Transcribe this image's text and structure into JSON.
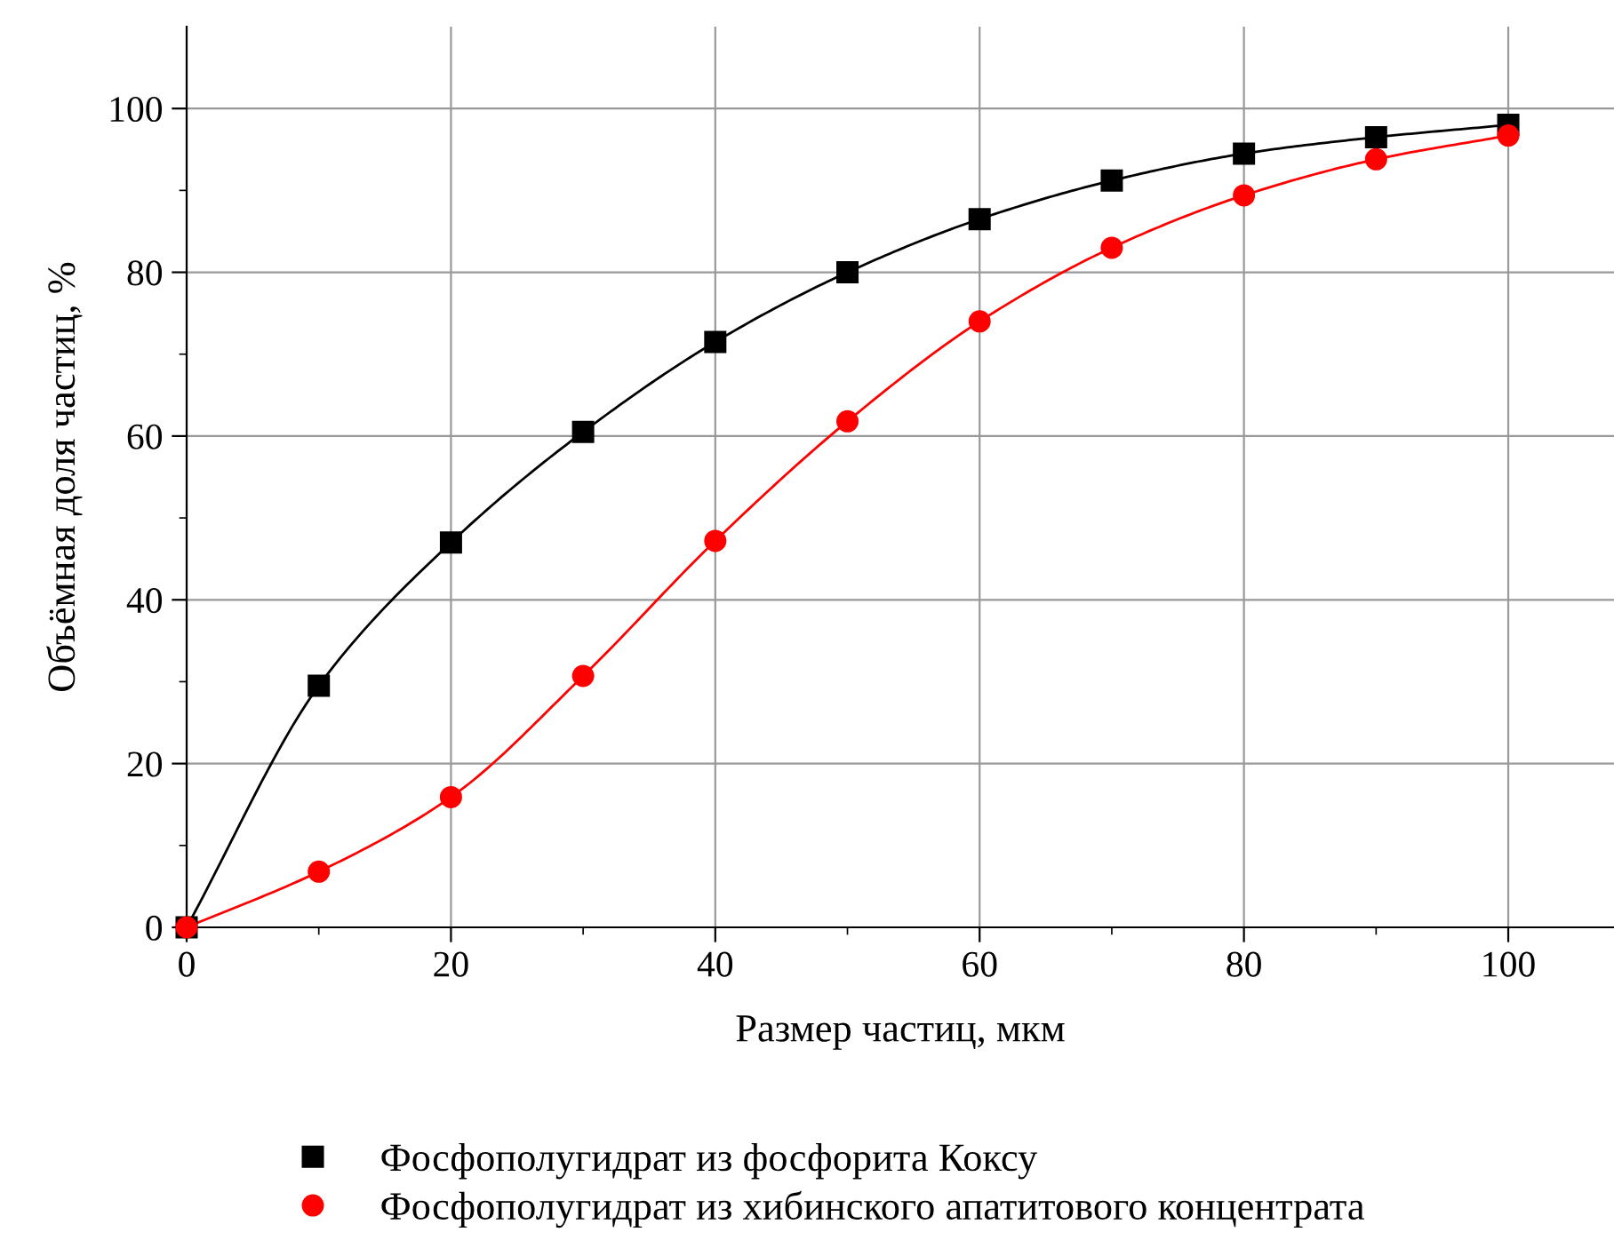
{
  "chart_data": {
    "type": "line",
    "xlabel": "Размер частиц, мкм",
    "ylabel": "Объёмная доля частиц, %",
    "x": [
      0,
      10,
      20,
      30,
      40,
      50,
      60,
      70,
      80,
      90,
      100
    ],
    "series": [
      {
        "name": "Фосфополугидрат из фосфорита Коксу",
        "color": "#000000",
        "marker": "square",
        "values": [
          0,
          29.5,
          47,
          60.5,
          71.5,
          80,
          86.5,
          91.2,
          94.5,
          96.5,
          98
        ]
      },
      {
        "name": "Фосфополугидрат из хибинского апатитового концентрата",
        "color": "#ff0000",
        "marker": "circle",
        "values": [
          0,
          6.8,
          15.9,
          30.7,
          47.2,
          61.8,
          74,
          83,
          89.4,
          93.8,
          96.7
        ]
      }
    ],
    "xlim": [
      0,
      108
    ],
    "ylim": [
      0,
      110
    ],
    "xticks": [
      0,
      20,
      40,
      60,
      80,
      100
    ],
    "yticks": [
      0,
      20,
      40,
      60,
      80,
      100
    ],
    "grid": true,
    "legend": "bottom",
    "line_style": "solid"
  }
}
